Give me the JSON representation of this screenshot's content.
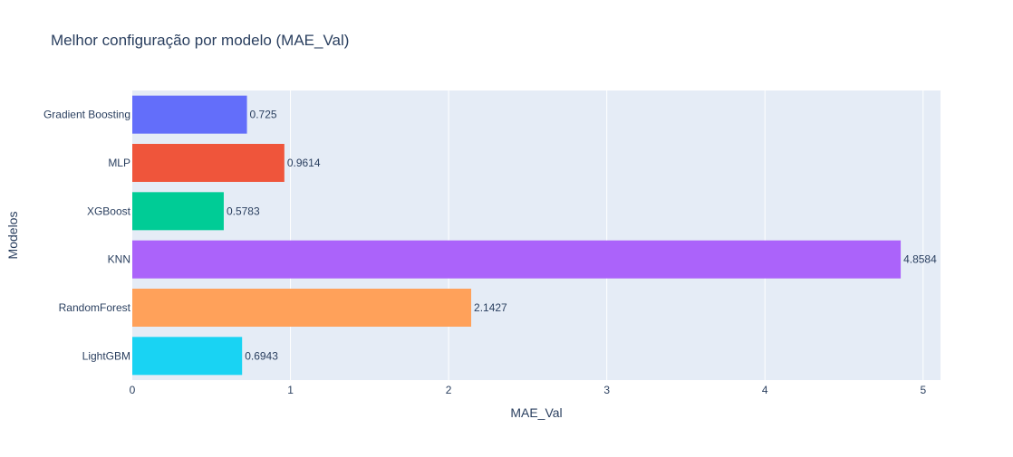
{
  "chart_data": {
    "type": "bar",
    "orientation": "horizontal",
    "title": "Melhor configuração por modelo (MAE_Val)",
    "xlabel": "MAE_Val",
    "ylabel": "Modelos",
    "xlim": [
      0,
      5.11
    ],
    "x_ticks": [
      0,
      1,
      2,
      3,
      4,
      5
    ],
    "x_tick_labels": [
      "0",
      "1",
      "2",
      "3",
      "4",
      "5"
    ],
    "grid": true,
    "legend": "none",
    "categories": [
      "Gradient Boosting",
      "MLP",
      "XGBoost",
      "KNN",
      "RandomForest",
      "LightGBM"
    ],
    "values": [
      0.725,
      0.9614,
      0.5783,
      4.8584,
      2.1427,
      0.6943
    ],
    "value_labels": [
      "0.725",
      "0.9614",
      "0.5783",
      "4.8584",
      "2.1427",
      "0.6943"
    ],
    "colors": [
      "#636efa",
      "#ef553b",
      "#00cc96",
      "#ab63fa",
      "#ffa15a",
      "#19d3f3"
    ]
  },
  "style": {
    "plot_background": "#e5ecf6",
    "grid_color": "#ffffff",
    "text_color": "#2a3f5f"
  }
}
